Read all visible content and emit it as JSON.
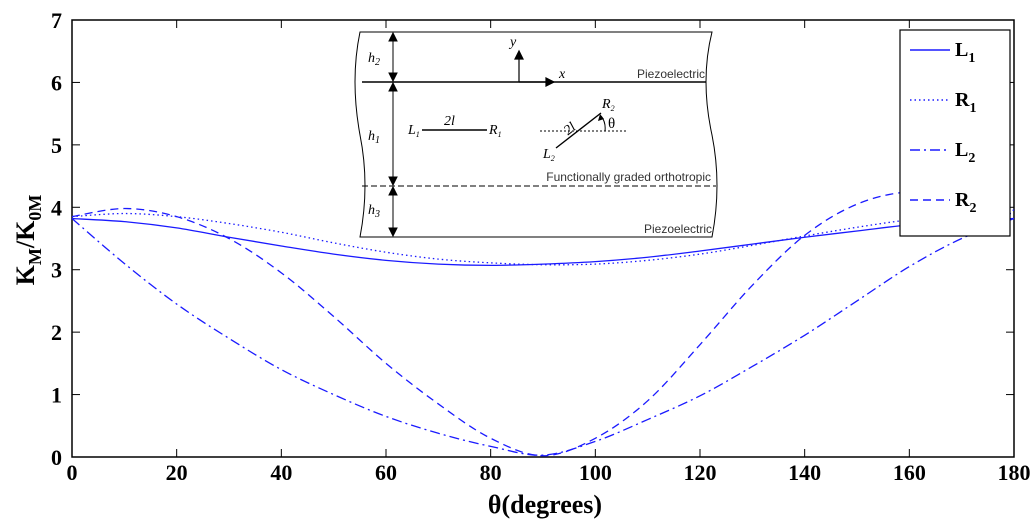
{
  "chart_data": {
    "type": "line",
    "title": "",
    "xlabel": "θ(degrees)",
    "ylabel_main": "K",
    "ylabel_main_sub": "M",
    "ylabel_sep": "/K",
    "ylabel_den_sub": "0M",
    "xlim": [
      0,
      180
    ],
    "ylim": [
      0,
      7
    ],
    "xticks": [
      0,
      20,
      40,
      60,
      80,
      100,
      120,
      140,
      160,
      180
    ],
    "yticks": [
      0,
      1,
      2,
      3,
      4,
      5,
      6,
      7
    ],
    "grid": false,
    "legend_position": "top-right",
    "series": [
      {
        "name": "L",
        "sub": "1",
        "style": "solid",
        "x": [
          0,
          10,
          20,
          30,
          40,
          50,
          60,
          70,
          80,
          90,
          100,
          110,
          120,
          130,
          140,
          150,
          160,
          170,
          180
        ],
        "y": [
          3.82,
          3.77,
          3.67,
          3.52,
          3.38,
          3.25,
          3.15,
          3.09,
          3.07,
          3.09,
          3.13,
          3.2,
          3.3,
          3.41,
          3.52,
          3.62,
          3.72,
          3.79,
          3.82
        ]
      },
      {
        "name": "R",
        "sub": "1",
        "style": "dotted",
        "x": [
          0,
          10,
          20,
          30,
          40,
          50,
          60,
          70,
          80,
          90,
          100,
          110,
          120,
          130,
          140,
          150,
          160,
          170,
          180
        ],
        "y": [
          3.85,
          3.9,
          3.85,
          3.74,
          3.6,
          3.43,
          3.28,
          3.17,
          3.11,
          3.08,
          3.09,
          3.15,
          3.25,
          3.39,
          3.54,
          3.68,
          3.8,
          3.88,
          3.9
        ]
      },
      {
        "name": "L",
        "sub": "2",
        "style": "dashdot",
        "x": [
          0,
          10,
          20,
          30,
          40,
          50,
          60,
          70,
          80,
          90,
          100,
          110,
          120,
          130,
          140,
          150,
          160,
          170,
          180
        ],
        "y": [
          3.82,
          3.1,
          2.45,
          1.9,
          1.4,
          1.0,
          0.65,
          0.38,
          0.17,
          0.03,
          0.25,
          0.6,
          0.98,
          1.45,
          1.95,
          2.5,
          3.05,
          3.5,
          3.82
        ]
      },
      {
        "name": "R",
        "sub": "2",
        "style": "dashed",
        "x": [
          0,
          10,
          20,
          30,
          40,
          50,
          60,
          70,
          80,
          90,
          100,
          110,
          120,
          130,
          140,
          150,
          160,
          170,
          180
        ],
        "y": [
          3.85,
          3.98,
          3.85,
          3.5,
          2.95,
          2.25,
          1.5,
          0.85,
          0.3,
          0.02,
          0.3,
          0.9,
          1.8,
          2.75,
          3.55,
          4.05,
          4.25,
          4.2,
          3.95
        ]
      }
    ]
  },
  "inset": {
    "labels": {
      "h2": "h",
      "h2_sub": "2",
      "h1": "h",
      "h1_sub": "1",
      "h3": "h",
      "h3_sub": "3",
      "y_axis": "y",
      "x_axis": "x",
      "crack1_left": "L",
      "crack1_left_sub": "1",
      "crack1_right": "R",
      "crack1_right_sub": "1",
      "crack1_length": "2l",
      "crack2_left": "L",
      "crack2_left_sub": "2",
      "crack2_right": "R",
      "crack2_right_sub": "2",
      "crack2_length": "2l",
      "angle": "θ",
      "layer_top": "Piezoelectric",
      "layer_middle": "Functionally graded orthotropic",
      "layer_bottom": "Piezoelectric"
    }
  }
}
